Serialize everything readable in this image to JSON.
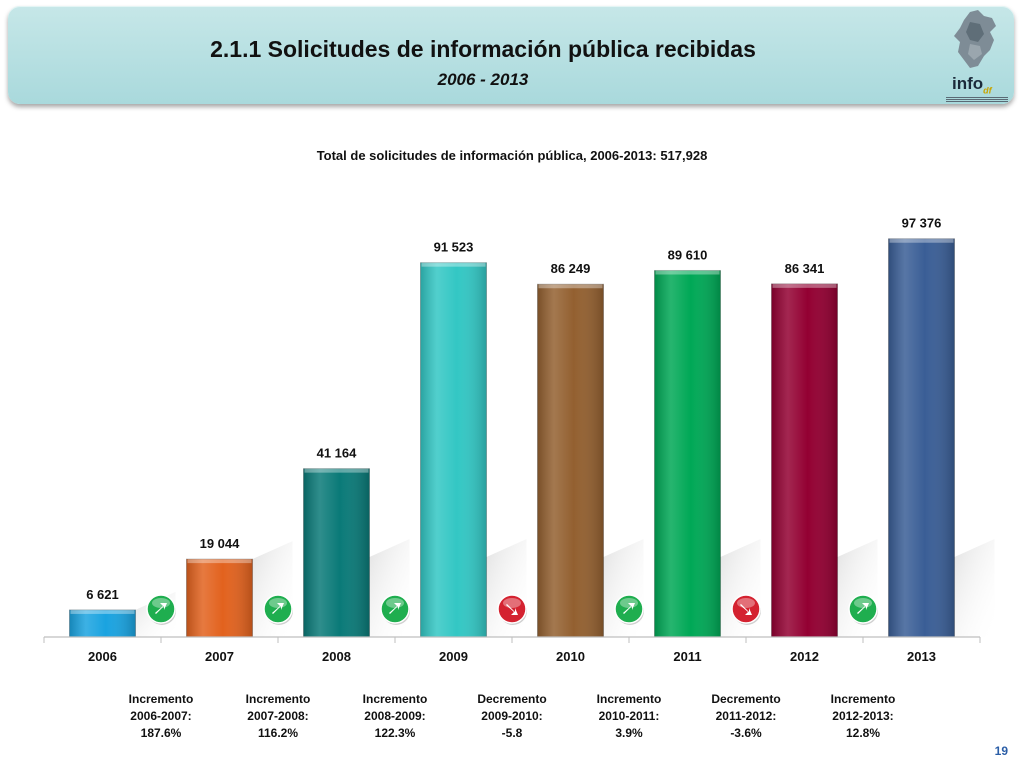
{
  "header": {
    "title": "2.1.1 Solicitudes de información pública recibidas",
    "subtitle": "2006 - 2013",
    "logo_text": "info",
    "logo_suffix": "df"
  },
  "chart_data": {
    "type": "bar",
    "title": "Total de solicitudes de información pública, 2006-2013: 517,928",
    "categories": [
      "2006",
      "2007",
      "2008",
      "2009",
      "2010",
      "2011",
      "2012",
      "2013"
    ],
    "values": [
      6621,
      19044,
      41164,
      91523,
      86249,
      89610,
      86341,
      97376
    ],
    "value_labels": [
      "6 621",
      "19 044",
      "41 164",
      "91 523",
      "86 249",
      "89 610",
      "86 341",
      "97 376"
    ],
    "colors": [
      "#1aa3e0",
      "#e2621e",
      "#0a7a78",
      "#33c7c4",
      "#936030",
      "#00a856",
      "#930032",
      "#3a5e96"
    ],
    "ylim": [
      0,
      100000
    ],
    "grid": false,
    "legend": "none",
    "changes": [
      {
        "label_lines": [
          "Incremento",
          "2006-2007:",
          "187.6%"
        ],
        "direction": "up"
      },
      {
        "label_lines": [
          "Incremento",
          "2007-2008:",
          "116.2%"
        ],
        "direction": "up"
      },
      {
        "label_lines": [
          "Incremento",
          "2008-2009:",
          "122.3%"
        ],
        "direction": "up"
      },
      {
        "label_lines": [
          "Decremento",
          "2009-2010:",
          "-5.8"
        ],
        "direction": "down"
      },
      {
        "label_lines": [
          "Incremento",
          "2010-2011:",
          "3.9%"
        ],
        "direction": "up"
      },
      {
        "label_lines": [
          "Decremento",
          "2011-2012:",
          "-3.6%"
        ],
        "direction": "down"
      },
      {
        "label_lines": [
          "Incremento",
          "2012-2013:",
          "12.8%"
        ],
        "direction": "up"
      }
    ],
    "up_color": "#1fae4f",
    "down_color": "#d42230"
  },
  "footer": {
    "page_number": "19"
  }
}
